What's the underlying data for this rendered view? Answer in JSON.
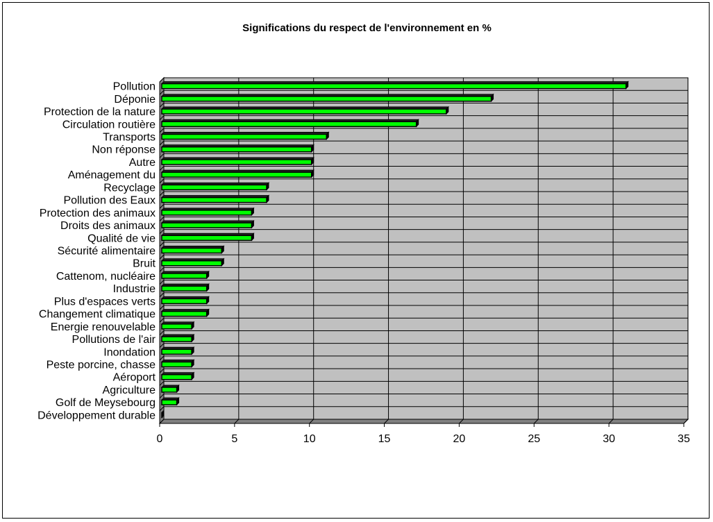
{
  "chart_data": {
    "type": "bar",
    "orientation": "horizontal",
    "title": "Significations du respect de l'environnement en %",
    "categories": [
      "Pollution",
      "Déponie",
      "Protection de la nature",
      "Circulation routière",
      "Transports",
      "Non réponse",
      "Autre",
      "Aménagement du",
      "Recyclage",
      "Pollution des Eaux",
      "Protection des animaux",
      "Droits des animaux",
      "Qualité de vie",
      "Sécurité alimentaire",
      "Bruit",
      "Cattenom, nucléaire",
      "Industrie",
      "Plus d'espaces verts",
      "Changement climatique",
      "Energie renouvelable",
      "Pollutions de l'air",
      "Inondation",
      "Peste porcine, chasse",
      "Aéroport",
      "Agriculture",
      "Golf de Meysebourg",
      "Développement durable"
    ],
    "values": [
      31,
      22,
      19,
      17,
      11,
      10,
      10,
      10,
      7,
      7,
      6,
      6,
      6,
      4,
      4,
      3,
      3,
      3,
      3,
      2,
      2,
      2,
      2,
      2,
      1,
      1,
      0
    ],
    "xlim": [
      0,
      35
    ],
    "xticks": [
      0,
      5,
      10,
      15,
      20,
      25,
      30,
      35
    ],
    "grid": true,
    "legend": "none",
    "colors": {
      "bar": "#00ff00",
      "bar_side": "#000000",
      "plot_bg": "#c0c0c0",
      "gridline": "#000000"
    }
  }
}
